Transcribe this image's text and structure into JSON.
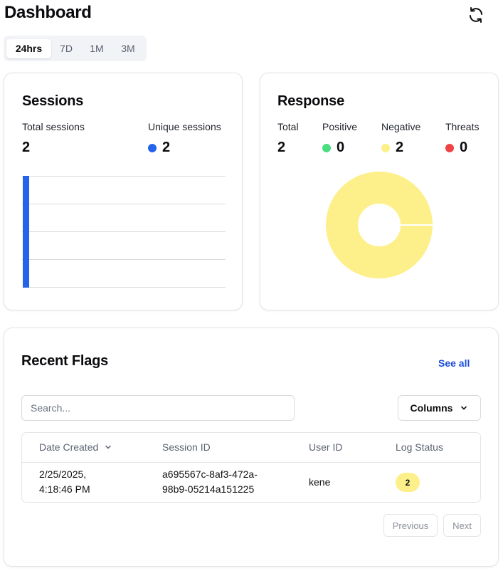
{
  "header": {
    "title": "Dashboard",
    "refresh_icon": "refresh-icon"
  },
  "range_tabs": [
    {
      "label": "24hrs",
      "active": true
    },
    {
      "label": "7D",
      "active": false
    },
    {
      "label": "1M",
      "active": false
    },
    {
      "label": "3M",
      "active": false
    }
  ],
  "sessions": {
    "title": "Sessions",
    "total_label": "Total sessions",
    "total_value": "2",
    "unique_label": "Unique sessions",
    "unique_value": "2",
    "unique_color": "#2563eb",
    "bar_color": "#2563eb",
    "bar_value": 2,
    "bar_max": 2
  },
  "response": {
    "title": "Response",
    "total_label": "Total",
    "total_value": "2",
    "positive_label": "Positive",
    "positive_value": "0",
    "positive_color": "#4ade80",
    "negative_label": "Negative",
    "negative_value": "2",
    "negative_color": "#fdf08a",
    "threats_label": "Threats",
    "threats_value": "0",
    "threats_color": "#ef4444"
  },
  "recent_flags": {
    "title": "Recent Flags",
    "see_all": "See all",
    "search_placeholder": "Search...",
    "columns_label": "Columns",
    "headers": {
      "date": "Date Created",
      "session": "Session ID",
      "user": "User ID",
      "status": "Log Status"
    },
    "rows": [
      {
        "date_line1": "2/25/2025,",
        "date_line2": "4:18:46 PM",
        "session_line1": "a695567c-8af3-472a-",
        "session_line2": "98b9-05214a151225",
        "user": "kene",
        "status": "2"
      }
    ],
    "previous": "Previous",
    "next": "Next"
  }
}
